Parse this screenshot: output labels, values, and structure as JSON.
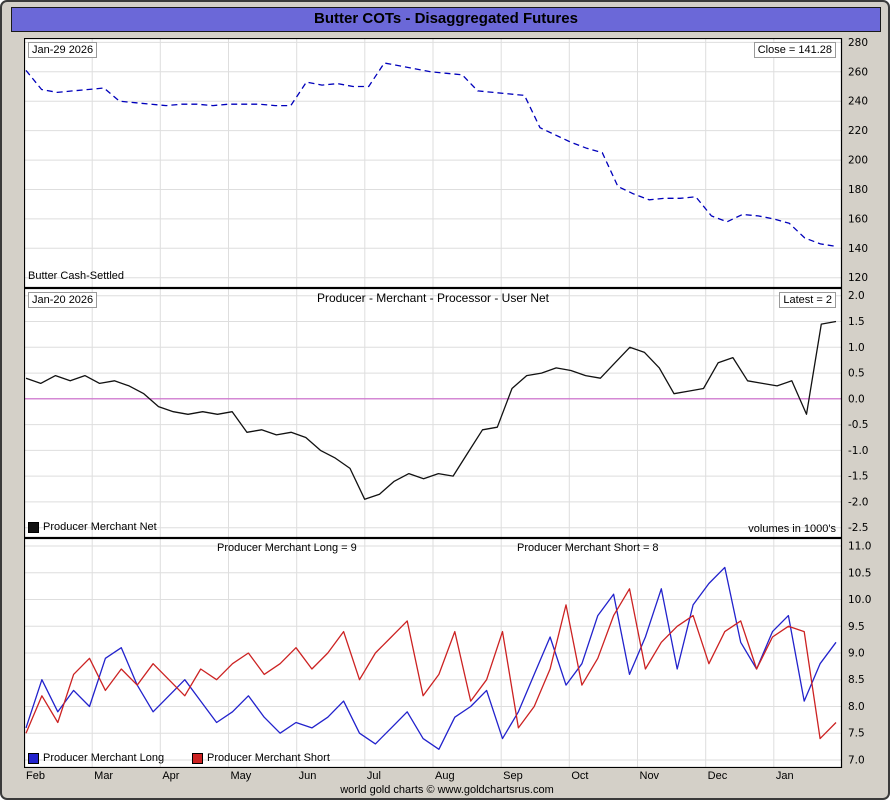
{
  "title": "Butter COTs - Disaggregated Futures",
  "footer": "world gold charts © www.goldchartsrus.com",
  "panel1": {
    "date": "Jan-29  2026",
    "close": "Close = 141.28",
    "name": "Butter Cash-Settled"
  },
  "panel2": {
    "date": "Jan-20  2026",
    "title": "Producer - Merchant - Processor - User Net",
    "latest": "Latest = 2",
    "legend": "Producer Merchant Net",
    "volumes": "volumes in 1000's"
  },
  "panel3": {
    "long_top": "Producer Merchant Long = 9",
    "short_top": "Producer Merchant Short = 8",
    "legend_long": "Producer Merchant Long",
    "legend_short": "Producer Merchant Short"
  },
  "colors": {
    "titlebar": "#6b68d8",
    "price_line": "#0000bb",
    "net_line": "#111111",
    "zero_line": "#cc66cc",
    "long_line": "#2222cc",
    "short_line": "#cc2222",
    "grid": "#dedede"
  },
  "chart_data": [
    {
      "type": "line",
      "title": "Butter Cash-Settled weekly close",
      "x_axis": "weekly, Feb through Jan",
      "categories": [
        "Feb",
        "Mar",
        "Apr",
        "May",
        "Jun",
        "Jul",
        "Aug",
        "Sep",
        "Oct",
        "Nov",
        "Dec",
        "Jan"
      ],
      "ylim": [
        113,
        283
      ],
      "yticks": [
        280,
        260,
        240,
        220,
        200,
        180,
        160,
        140,
        120
      ],
      "tick_decimals": 0,
      "last_close": 141.28,
      "grid": true,
      "legend_position": "none",
      "series": [
        {
          "name": "Butter Cash-Settled",
          "color": "#0000bb",
          "style": "dashed",
          "values": [
            261,
            248,
            246,
            247,
            248,
            249,
            240,
            239,
            238,
            237,
            238,
            238,
            237,
            238,
            238,
            238,
            237,
            237,
            253,
            251,
            252,
            250,
            250,
            266,
            264,
            262,
            260,
            259,
            258,
            247,
            246,
            245,
            244,
            222,
            217,
            212,
            208,
            205,
            182,
            177,
            173,
            174,
            174,
            175,
            162,
            158,
            163,
            162,
            160,
            157,
            147,
            143,
            141.28
          ]
        }
      ]
    },
    {
      "type": "line",
      "title": "Producer - Merchant - Processor - User Net",
      "x_axis": "weekly, Feb through Jan (shares x axis with price panel)",
      "ylim": [
        -2.7,
        2.15
      ],
      "yticks": [
        2.0,
        1.5,
        1.0,
        0.5,
        0.0,
        -0.5,
        -1.0,
        -1.5,
        -2.0,
        -2.5
      ],
      "tick_decimals": 1,
      "latest": 2,
      "units": "volumes in 1000's",
      "zero_line_color": "#cc66cc",
      "grid": true,
      "legend_position": "bottom-left",
      "series": [
        {
          "name": "Producer Merchant Net",
          "color": "#111111",
          "values": [
            0.4,
            0.3,
            0.45,
            0.35,
            0.45,
            0.3,
            0.35,
            0.25,
            0.1,
            -0.15,
            -0.25,
            -0.3,
            -0.25,
            -0.3,
            -0.25,
            -0.65,
            -0.6,
            -0.7,
            -0.65,
            -0.75,
            -1.0,
            -1.15,
            -1.35,
            -1.95,
            -1.85,
            -1.6,
            -1.45,
            -1.55,
            -1.45,
            -1.5,
            -1.05,
            -0.6,
            -0.55,
            0.2,
            0.45,
            0.5,
            0.6,
            0.55,
            0.45,
            0.4,
            0.7,
            1.0,
            0.9,
            0.6,
            0.1,
            0.15,
            0.2,
            0.7,
            0.8,
            0.35,
            0.3,
            0.25,
            0.35,
            -0.3,
            1.45,
            1.5
          ]
        }
      ]
    },
    {
      "type": "line",
      "title": "Producer Merchant Long / Short positions (volumes in 1000's)",
      "x_axis": "weekly, Feb through Jan (shares x axis with price panel)",
      "ylim": [
        6.85,
        11.15
      ],
      "yticks": [
        11.0,
        10.5,
        10.0,
        9.5,
        9.0,
        8.5,
        8.0,
        7.5,
        7.0
      ],
      "tick_decimals": 1,
      "latest_long": 9,
      "latest_short": 8,
      "grid": true,
      "legend_position": "bottom-left",
      "series": [
        {
          "name": "Producer Merchant Long",
          "color": "#2222cc",
          "values": [
            7.6,
            8.5,
            7.9,
            8.3,
            8.0,
            8.9,
            9.1,
            8.4,
            7.9,
            8.2,
            8.5,
            8.1,
            7.7,
            7.9,
            8.2,
            7.8,
            7.5,
            7.7,
            7.6,
            7.8,
            8.1,
            7.5,
            7.3,
            7.6,
            7.9,
            7.4,
            7.2,
            7.8,
            8.0,
            8.3,
            7.4,
            7.9,
            8.6,
            9.3,
            8.4,
            8.8,
            9.7,
            10.1,
            8.6,
            9.3,
            10.2,
            8.7,
            9.9,
            10.3,
            10.6,
            9.2,
            8.7,
            9.4,
            9.7,
            8.1,
            8.8,
            9.2
          ]
        },
        {
          "name": "Producer Merchant Short",
          "color": "#cc2222",
          "values": [
            7.5,
            8.2,
            7.7,
            8.6,
            8.9,
            8.3,
            8.7,
            8.4,
            8.8,
            8.5,
            8.2,
            8.7,
            8.5,
            8.8,
            9.0,
            8.6,
            8.8,
            9.1,
            8.7,
            9.0,
            9.4,
            8.5,
            9.0,
            9.3,
            9.6,
            8.2,
            8.6,
            9.4,
            8.1,
            8.5,
            9.4,
            7.6,
            8.0,
            8.7,
            9.9,
            8.4,
            8.9,
            9.7,
            10.2,
            8.7,
            9.2,
            9.5,
            9.7,
            8.8,
            9.4,
            9.6,
            8.7,
            9.3,
            9.5,
            9.4,
            7.4,
            7.7
          ]
        }
      ]
    }
  ]
}
